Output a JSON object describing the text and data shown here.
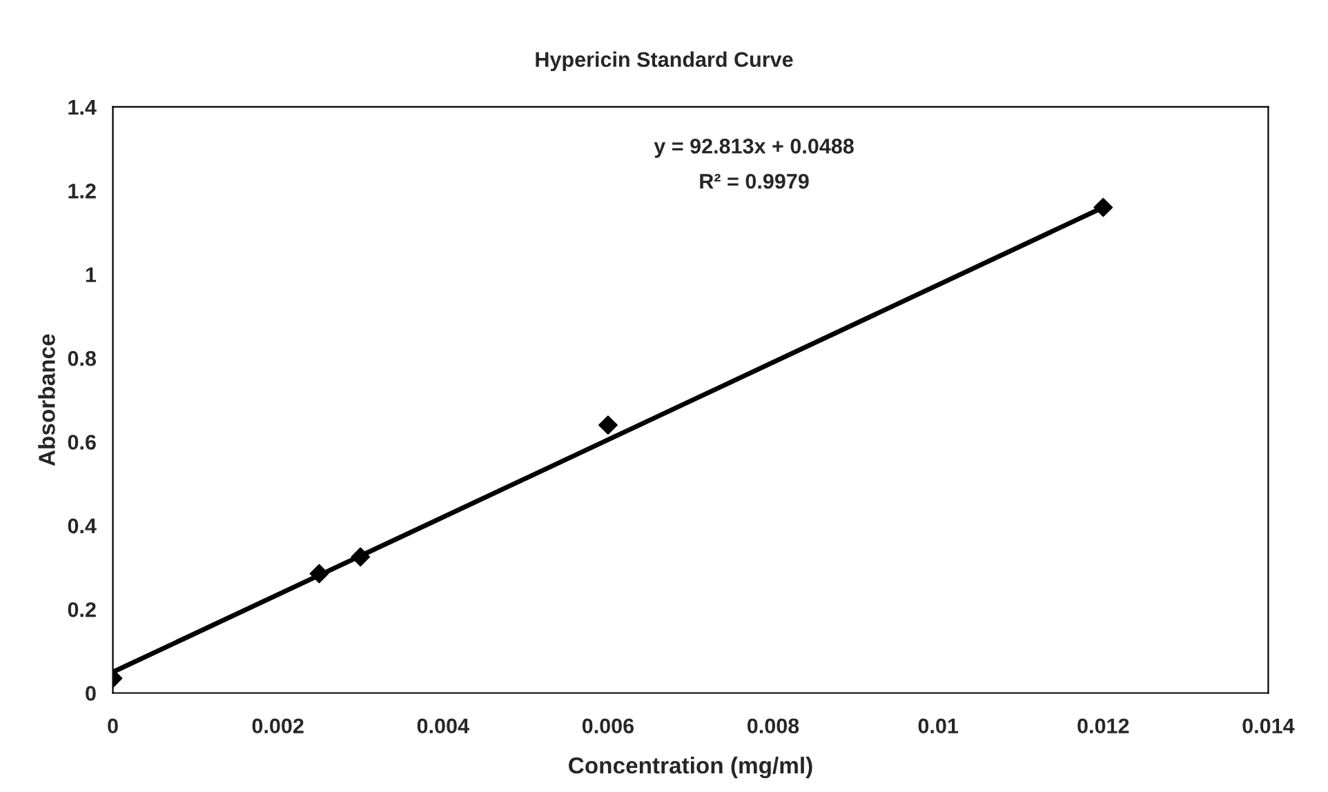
{
  "chart_data": {
    "type": "scatter",
    "title": "Hypericin Standard Curve",
    "xlabel": "Concentration (mg/ml)",
    "ylabel": "Absorbance",
    "series": [
      {
        "color": "#000000",
        "marker": "diamond",
        "x": [
          0,
          0.0025,
          0.003,
          0.006,
          0.012
        ],
        "values": [
          0.035,
          0.285,
          0.325,
          0.64,
          1.16
        ]
      },
      {
        "type": "line",
        "color": "#000000",
        "marker": "none",
        "line_style": "solid",
        "x": [
          0,
          0.012
        ],
        "values": [
          0.05,
          1.16
        ]
      }
    ],
    "annotations": [
      "y = 92.813x + 0.0488",
      "R² = 0.9979"
    ],
    "xlim": [
      0,
      0.014
    ],
    "xticks": [
      0,
      0.002,
      0.004,
      0.006,
      0.008,
      0.01,
      0.012,
      0.014
    ],
    "ylim": [
      0,
      1.4
    ],
    "yticks": [
      0,
      0.2,
      0.4,
      0.6,
      0.8,
      1,
      1.2,
      1.4
    ],
    "grid": false,
    "legend": false
  }
}
